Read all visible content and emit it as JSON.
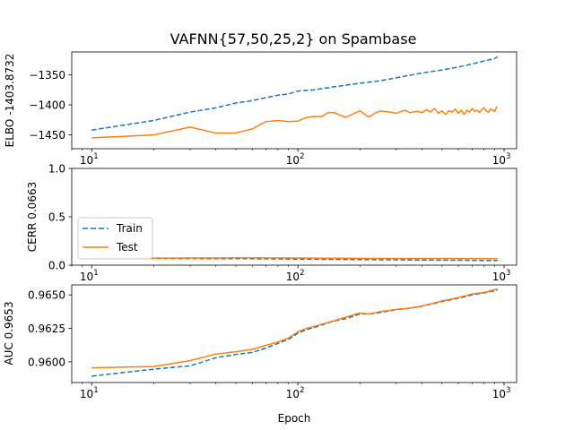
{
  "colors": {
    "train": "#1f77b4",
    "test": "#ff7f0e",
    "axes": "#000000",
    "legend_border": "#cccccc"
  },
  "chart_data": [
    {
      "type": "line",
      "title": "VAFNN{57,50,25,2} on Spambase",
      "ylabel": "ELBO -1403.8732",
      "xscale": "log",
      "xlim": [
        8,
        1150
      ],
      "ylim": [
        -1473,
        -1312
      ],
      "xticks": [
        {
          "base": "10",
          "exp": "1"
        },
        {
          "base": "10",
          "exp": "2"
        },
        {
          "base": "10",
          "exp": "3"
        }
      ],
      "yticks": [
        -1350,
        -1400,
        -1450
      ],
      "ytick_labels": [
        "−1350",
        "−1400",
        "−1450"
      ],
      "series": [
        {
          "role": "train",
          "dash": true,
          "x": [
            10,
            20,
            30,
            40,
            50,
            60,
            70,
            80,
            90,
            100,
            120,
            150,
            200,
            250,
            300,
            400,
            500,
            600,
            700,
            800,
            900,
            930
          ],
          "y": [
            -1442,
            -1426,
            -1412,
            -1405,
            -1397,
            -1393,
            -1388,
            -1384,
            -1382,
            -1377,
            -1375,
            -1370,
            -1364,
            -1360,
            -1355,
            -1347,
            -1342,
            -1337,
            -1332,
            -1327,
            -1323,
            -1320
          ]
        },
        {
          "role": "test",
          "dash": false,
          "x": [
            10,
            20,
            30,
            40,
            50,
            60,
            70,
            80,
            90,
            100,
            110,
            120,
            130,
            140,
            150,
            170,
            200,
            220,
            250,
            280,
            300,
            330,
            350,
            380,
            400,
            420,
            440,
            460,
            480,
            500,
            520,
            540,
            560,
            580,
            600,
            620,
            640,
            660,
            680,
            700,
            720,
            740,
            760,
            780,
            800,
            820,
            840,
            860,
            880,
            900,
            920,
            930
          ],
          "y": [
            -1455,
            -1450,
            -1437,
            -1447,
            -1447,
            -1440,
            -1428,
            -1426,
            -1428,
            -1427,
            -1421,
            -1419,
            -1420,
            -1413,
            -1413,
            -1421,
            -1410,
            -1420,
            -1410,
            -1412,
            -1414,
            -1409,
            -1413,
            -1411,
            -1413,
            -1408,
            -1412,
            -1406,
            -1414,
            -1410,
            -1416,
            -1410,
            -1412,
            -1407,
            -1414,
            -1409,
            -1416,
            -1409,
            -1412,
            -1406,
            -1411,
            -1409,
            -1413,
            -1408,
            -1405,
            -1410,
            -1412,
            -1407,
            -1409,
            -1411,
            -1404,
            -1405
          ]
        }
      ]
    },
    {
      "type": "line",
      "ylabel": "CERR 0.0663",
      "xscale": "log",
      "xlim": [
        8,
        1150
      ],
      "ylim": [
        0,
        1.0
      ],
      "xticks": [
        {
          "base": "10",
          "exp": "1"
        },
        {
          "base": "10",
          "exp": "2"
        },
        {
          "base": "10",
          "exp": "3"
        }
      ],
      "yticks": [
        0.0,
        0.5,
        1.0
      ],
      "ytick_labels": [
        "0.0",
        "0.5",
        "1.0"
      ],
      "legend": {
        "loc": "lower-left",
        "entries": [
          "Train",
          "Test"
        ]
      },
      "series": [
        {
          "name": "Train",
          "role": "train",
          "dash": true,
          "x": [
            10,
            20,
            30,
            50,
            70,
            100,
            150,
            200,
            300,
            500,
            700,
            930
          ],
          "y": [
            0.069,
            0.069,
            0.068,
            0.067,
            0.066,
            0.062,
            0.06,
            0.058,
            0.055,
            0.052,
            0.05,
            0.047
          ]
        },
        {
          "name": "Test",
          "role": "test",
          "dash": false,
          "x": [
            10,
            20,
            30,
            50,
            70,
            100,
            150,
            200,
            300,
            500,
            700,
            930
          ],
          "y": [
            0.072,
            0.073,
            0.074,
            0.076,
            0.075,
            0.074,
            0.072,
            0.071,
            0.07,
            0.069,
            0.068,
            0.066
          ]
        }
      ]
    },
    {
      "type": "line",
      "ylabel": "AUC 0.9653",
      "xlabel": "Epoch",
      "xscale": "log",
      "xlim": [
        8,
        1150
      ],
      "ylim": [
        0.95845,
        0.96575
      ],
      "xticks": [
        {
          "base": "10",
          "exp": "1"
        },
        {
          "base": "10",
          "exp": "2"
        },
        {
          "base": "10",
          "exp": "3"
        }
      ],
      "yticks": [
        0.96,
        0.9625,
        0.965
      ],
      "ytick_labels": [
        "0.9600",
        "0.9625",
        "0.9650"
      ],
      "series": [
        {
          "role": "train",
          "dash": true,
          "x": [
            10,
            20,
            30,
            40,
            50,
            60,
            70,
            80,
            90,
            100,
            110,
            120,
            150,
            170,
            200,
            220,
            250,
            300,
            350,
            400,
            500,
            600,
            700,
            800,
            930
          ],
          "y": [
            0.95893,
            0.95945,
            0.9597,
            0.9603,
            0.96055,
            0.9607,
            0.96103,
            0.96137,
            0.96168,
            0.96213,
            0.9624,
            0.96257,
            0.96305,
            0.96322,
            0.96357,
            0.96357,
            0.96368,
            0.9639,
            0.964,
            0.96415,
            0.9645,
            0.96475,
            0.965,
            0.96515,
            0.96535
          ]
        },
        {
          "role": "test",
          "dash": false,
          "x": [
            10,
            20,
            30,
            40,
            50,
            60,
            70,
            80,
            90,
            100,
            110,
            120,
            150,
            170,
            200,
            220,
            250,
            300,
            350,
            400,
            500,
            600,
            700,
            800,
            930
          ],
          "y": [
            0.95955,
            0.95965,
            0.96008,
            0.96058,
            0.96075,
            0.96093,
            0.96123,
            0.96148,
            0.96178,
            0.96225,
            0.9625,
            0.96265,
            0.96307,
            0.96333,
            0.96365,
            0.96357,
            0.96375,
            0.96392,
            0.96402,
            0.96417,
            0.96455,
            0.9648,
            0.96507,
            0.96518,
            0.96545
          ]
        }
      ]
    }
  ]
}
